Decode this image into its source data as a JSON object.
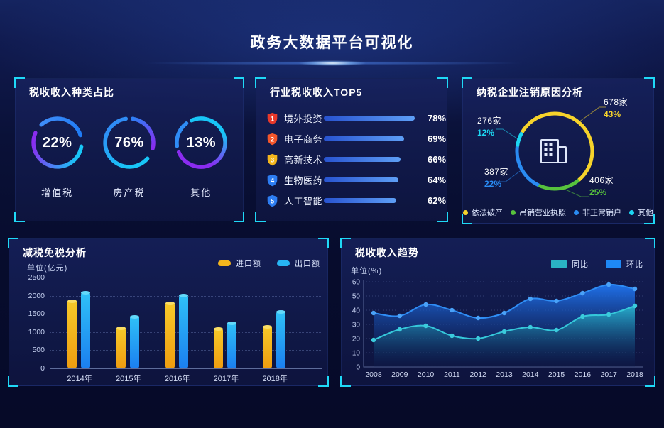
{
  "header": {
    "title": "政务大数据平台可视化"
  },
  "panels": {
    "tax_type": {
      "title": "税收收入种类占比",
      "rings": [
        {
          "percent": "22%",
          "label": "增值税"
        },
        {
          "percent": "76%",
          "label": "房产税"
        },
        {
          "percent": "13%",
          "label": "其他"
        }
      ]
    },
    "industry_top5": {
      "title": "行业税收收入TOP5",
      "rows": [
        {
          "rank": "1",
          "label": "境外投资",
          "percent_label": "78%",
          "value": 78,
          "badge_color": "#e8392b"
        },
        {
          "rank": "2",
          "label": "电子商务",
          "percent_label": "69%",
          "value": 69,
          "badge_color": "#f4562b"
        },
        {
          "rank": "3",
          "label": "高新技术",
          "percent_label": "66%",
          "value": 66,
          "badge_color": "#f3b51d"
        },
        {
          "rank": "4",
          "label": "生物医药",
          "percent_label": "64%",
          "value": 64,
          "badge_color": "#2d7df2"
        },
        {
          "rank": "5",
          "label": "人工智能",
          "percent_label": "62%",
          "value": 62,
          "badge_color": "#2d7df2"
        }
      ]
    },
    "cancellation": {
      "title": "纳税企业注销原因分析",
      "segments": [
        {
          "label": "依法破产",
          "count": "678家",
          "percent": "43%",
          "color": "#f6d32b"
        },
        {
          "label": "吊销营业执照",
          "count": "406家",
          "percent": "25%",
          "color": "#57c23d"
        },
        {
          "label": "非正常销户",
          "count": "387家",
          "percent": "22%",
          "color": "#2a8bf2"
        },
        {
          "label": "其他",
          "count": "276家",
          "percent": "12%",
          "color": "#1cd6f2"
        }
      ]
    },
    "tax_reduction": {
      "title": "减税免税分析",
      "unit": "单位(亿元)",
      "legend": [
        {
          "label": "进口额",
          "color": "#f3b51d"
        },
        {
          "label": "出口额",
          "color": "#27b6f5"
        }
      ]
    },
    "trend": {
      "title": "税收收入趋势",
      "unit": "单位(%)",
      "legend": [
        {
          "label": "同比",
          "color": "#2ab3c4"
        },
        {
          "label": "环比",
          "color": "#1e88f5"
        }
      ]
    }
  },
  "chart_data": [
    {
      "type": "donut",
      "title": "税收收入种类占比",
      "unit": "%",
      "items": [
        {
          "label": "增值税",
          "value": 22
        },
        {
          "label": "房产税",
          "value": 76
        },
        {
          "label": "其他",
          "value": 13
        }
      ]
    },
    {
      "type": "bar",
      "title": "行业税收收入TOP5",
      "orientation": "horizontal",
      "unit": "%",
      "categories": [
        "境外投资",
        "电子商务",
        "高新技术",
        "生物医药",
        "人工智能"
      ],
      "values": [
        78,
        69,
        66,
        64,
        62
      ],
      "xlim": [
        0,
        100
      ]
    },
    {
      "type": "pie",
      "title": "纳税企业注销原因分析",
      "unit": "%",
      "categories": [
        "依法破产",
        "吊销营业执照",
        "非正常销户",
        "其他"
      ],
      "values": [
        43,
        25,
        22,
        12
      ],
      "counts": [
        "678家",
        "406家",
        "387家",
        "276家"
      ],
      "legend_position": "bottom"
    },
    {
      "type": "bar",
      "title": "减税免税分析",
      "ylabel": "单位(亿元)",
      "categories": [
        "2014年",
        "2015年",
        "2016年",
        "2017年",
        "2018年"
      ],
      "series": [
        {
          "name": "进口额",
          "values": [
            1850,
            1100,
            1780,
            1080,
            1150
          ]
        },
        {
          "name": "出口额",
          "values": [
            2080,
            1420,
            2000,
            1250,
            1550
          ]
        }
      ],
      "ylim": [
        0,
        2500
      ],
      "yticks": [
        0,
        500,
        1000,
        1500,
        2000,
        2500
      ],
      "grid": true,
      "legend_position": "top-right"
    },
    {
      "type": "area",
      "title": "税收收入趋势",
      "ylabel": "单位(%)",
      "x": [
        2008,
        2009,
        2010,
        2011,
        2012,
        2013,
        2014,
        2015,
        2016,
        2017,
        2018
      ],
      "series": [
        {
          "name": "同比",
          "values": [
            19,
            26.5,
            29,
            22,
            20,
            25,
            28,
            26,
            35.5,
            37,
            43
          ]
        },
        {
          "name": "环比",
          "values": [
            38,
            36,
            44,
            40,
            34.5,
            38,
            48,
            46.5,
            52,
            58,
            55
          ]
        }
      ],
      "ylim": [
        0,
        60
      ],
      "yticks": [
        0,
        10,
        20,
        30,
        40,
        50,
        60
      ],
      "grid": true,
      "legend_position": "top-right"
    }
  ]
}
